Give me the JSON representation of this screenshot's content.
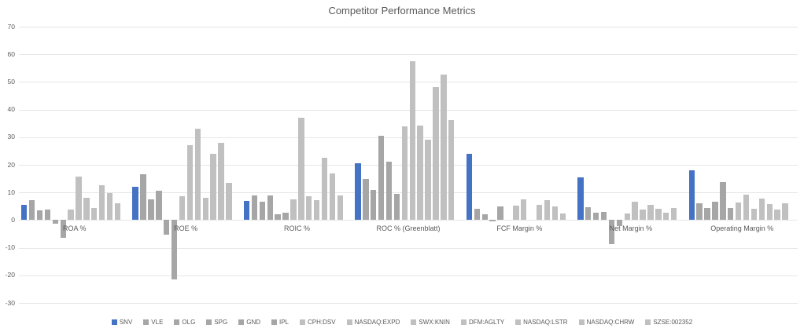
{
  "colors": {
    "accent_blue": "#4472C4",
    "gray_dark": "#A6A6A6",
    "gray_light": "#C0C0C0",
    "gridline": "#E6E6E6",
    "text": "#595959"
  },
  "chart_data": {
    "type": "bar",
    "title": "Competitor Performance Metrics",
    "categories": [
      "ROA %",
      "ROE %",
      "ROIC %",
      "ROC % (Greenblatt)",
      "FCF Margin %",
      "Net Margin %",
      "Operating Margin %"
    ],
    "series": [
      {
        "name": "SNV",
        "color": "#4472C4",
        "values": [
          5.6,
          12.0,
          7.0,
          20.5,
          24.0,
          15.5,
          18.0
        ]
      },
      {
        "name": "VLE",
        "color": "#A6A6A6",
        "values": [
          7.1,
          16.5,
          9.0,
          15.0,
          4.1,
          4.6,
          6.0
        ]
      },
      {
        "name": "OLG",
        "color": "#A6A6A6",
        "values": [
          3.5,
          7.5,
          6.7,
          11.0,
          2.2,
          2.8,
          4.4
        ]
      },
      {
        "name": "SPG",
        "color": "#A6A6A6",
        "values": [
          3.8,
          10.5,
          9.0,
          30.5,
          -0.4,
          3.0,
          6.7
        ]
      },
      {
        "name": "GND",
        "color": "#A6A6A6",
        "values": [
          -1.4,
          -5.2,
          2.0,
          21.0,
          5.0,
          -8.8,
          13.7
        ]
      },
      {
        "name": "IPL",
        "color": "#A6A6A6",
        "values": [
          -6.5,
          -21.5,
          2.6,
          9.5,
          0,
          -2.2,
          4.4
        ]
      },
      {
        "name": "CPH:DSV",
        "color": "#C0C0C0",
        "values": [
          3.7,
          8.5,
          7.6,
          34.0,
          5.3,
          2.5,
          6.5
        ]
      },
      {
        "name": "NASDAQ:EXPD",
        "color": "#C0C0C0",
        "values": [
          15.6,
          27.0,
          37.0,
          57.5,
          7.4,
          6.7,
          9.1
        ]
      },
      {
        "name": "SWX:KNIN",
        "color": "#C0C0C0",
        "values": [
          8.1,
          33.0,
          8.6,
          34.2,
          0,
          3.7,
          4.2
        ]
      },
      {
        "name": "DFM:AGLTY",
        "color": "#C0C0C0",
        "values": [
          4.4,
          8.0,
          7.3,
          29.0,
          5.5,
          5.4,
          7.9
        ]
      },
      {
        "name": "NASDAQ:LSTR",
        "color": "#C0C0C0",
        "values": [
          12.5,
          24.0,
          22.5,
          48.0,
          7.2,
          4.2,
          5.8
        ]
      },
      {
        "name": "NASDAQ:CHRW",
        "color": "#C0C0C0",
        "values": [
          9.7,
          28.0,
          17.0,
          52.8,
          5.0,
          2.8,
          3.9
        ]
      },
      {
        "name": "SZSE:002352",
        "color": "#C0C0C0",
        "values": [
          6.2,
          13.5,
          9.0,
          36.3,
          2.4,
          4.3,
          6.2
        ]
      }
    ],
    "ylim": [
      -30,
      70
    ],
    "ytick_step": 10,
    "grid": true,
    "legend_position": "bottom",
    "yticks": [
      70,
      60,
      50,
      40,
      30,
      20,
      10,
      0,
      -10,
      -20,
      -30
    ]
  }
}
